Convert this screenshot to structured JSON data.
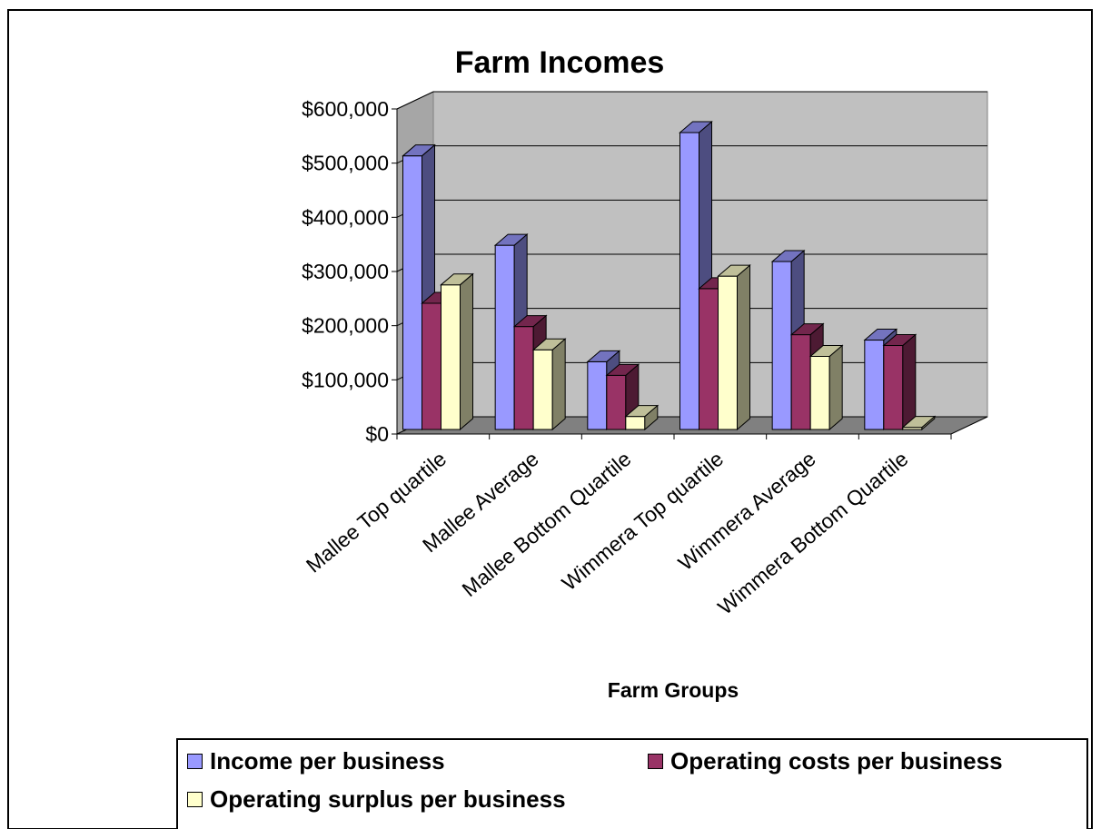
{
  "chart_data": {
    "type": "bar",
    "title": "Farm Incomes",
    "xlabel": "Farm Groups",
    "ylabel": "",
    "ylim": [
      0,
      600000
    ],
    "yticks": [
      "$0",
      "$100,000",
      "$200,000",
      "$300,000",
      "$400,000",
      "$500,000",
      "$600,000"
    ],
    "grid": true,
    "legend_position": "bottom",
    "categories": [
      "Mallee Top quartile",
      "Mallee Average",
      "Mallee Bottom Quartile",
      "Wimmera Top quartile",
      "Wimmera Average",
      "Wimmera Bottom Quartile"
    ],
    "series": [
      {
        "name": "Income per business",
        "color": "#9999FF",
        "values": [
          505000,
          340000,
          125000,
          548000,
          310000,
          165000
        ]
      },
      {
        "name": "Operating costs per business",
        "color": "#993366",
        "values": [
          233000,
          190000,
          100000,
          260000,
          175000,
          155000
        ]
      },
      {
        "name": "Operating surplus per business",
        "color": "#FFFFCC",
        "values": [
          267000,
          147000,
          24000,
          283000,
          135000,
          4000
        ]
      }
    ]
  }
}
